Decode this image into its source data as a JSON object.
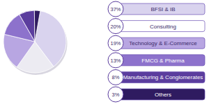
{
  "chart_data": {
    "type": "pie",
    "categories": [
      "BFSI & IB",
      "Consulting",
      "Technology & E-Commerce",
      "FMCG & Pharma",
      "Manufacturing & Conglomerates",
      "Others"
    ],
    "values": [
      37,
      20,
      19,
      13,
      8,
      3
    ],
    "value_labels": [
      "37%",
      "20%",
      "19%",
      "13%",
      "8%",
      "3%"
    ],
    "colors": [
      "#d9d3ee",
      "#ffffff",
      "#b8a6e2",
      "#8d72cc",
      "#5b3d9e",
      "#2f1b60"
    ],
    "data_labels": true
  }
}
